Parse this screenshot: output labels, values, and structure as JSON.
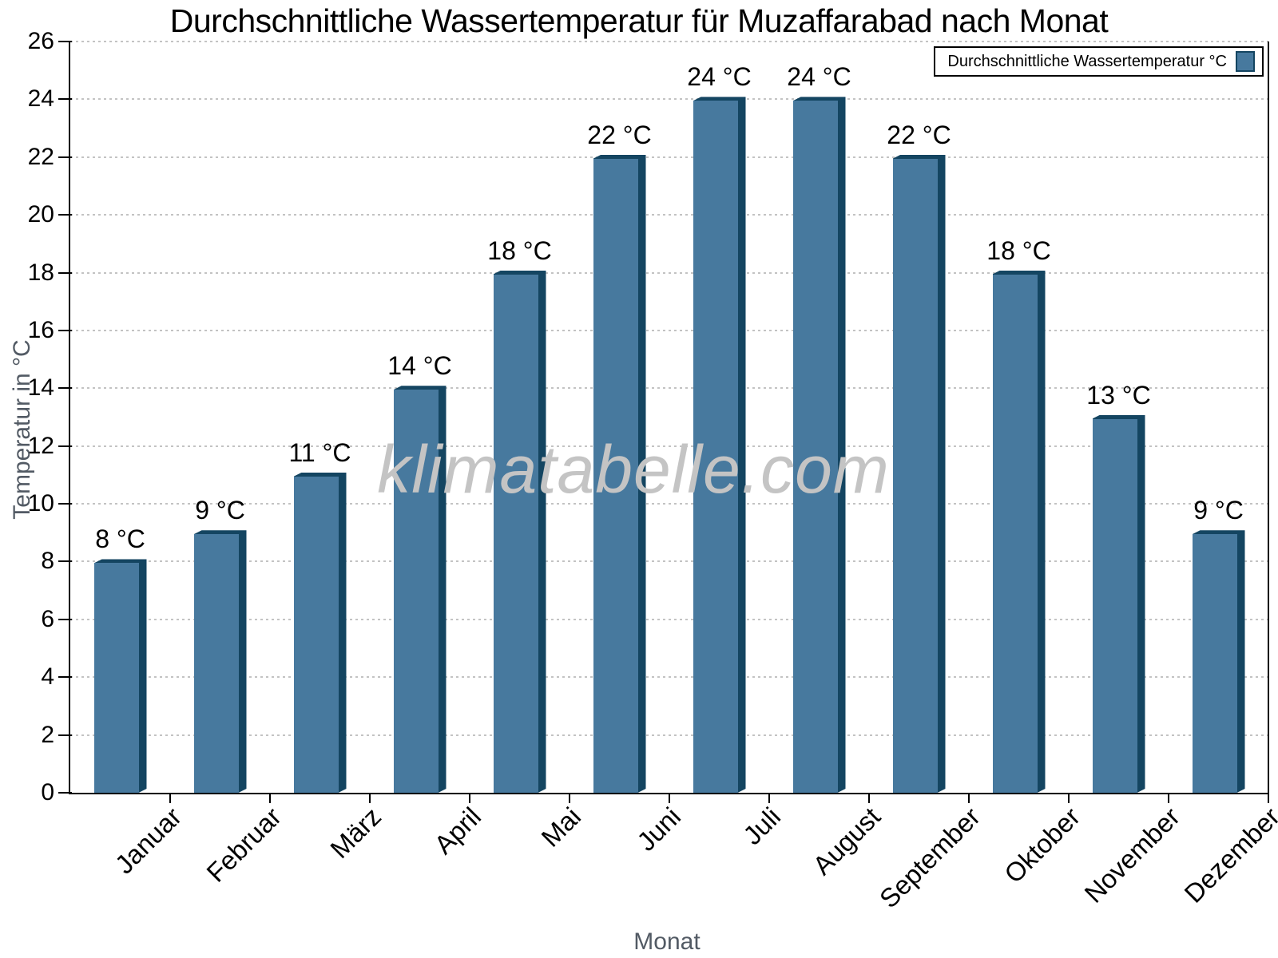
{
  "chart_data": {
    "type": "bar",
    "title": "Durchschnittliche Wassertemperatur für Muzaffarabad nach Monat",
    "xlabel": "Monat",
    "ylabel": "Temperatur in °C",
    "categories": [
      "Januar",
      "Februar",
      "März",
      "April",
      "Mai",
      "Juni",
      "Juli",
      "August",
      "September",
      "Oktober",
      "November",
      "Dezember"
    ],
    "values": [
      8,
      9,
      11,
      14,
      18,
      22,
      24,
      24,
      22,
      18,
      13,
      9
    ],
    "value_suffix": " °C",
    "ylim": [
      0,
      26
    ],
    "ytick_step": 2,
    "grid": "horizontal-dotted",
    "legend": {
      "label": "Durchschnittliche Wassertemperatur °C",
      "position": "top-right"
    },
    "watermark": "klimatabelle.com",
    "colors": {
      "bar_fill": "#47799E",
      "bar_edge": "#144561",
      "grid": "#c3c3c3",
      "axis": "#000000",
      "axis_title": "#525a64",
      "watermark": "#c4c4c4"
    }
  }
}
